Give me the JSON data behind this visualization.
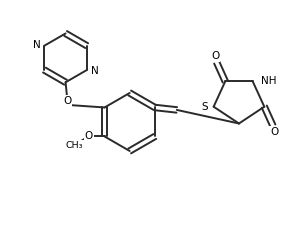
{
  "background_color": "#ffffff",
  "bond_color": "#2a2a2a",
  "text_color": "#000000",
  "lw": 1.4,
  "figsize": [
    2.96,
    2.47
  ],
  "dpi": 100,
  "xlim": [
    0,
    9.5
  ],
  "ylim": [
    0,
    8.0
  ]
}
